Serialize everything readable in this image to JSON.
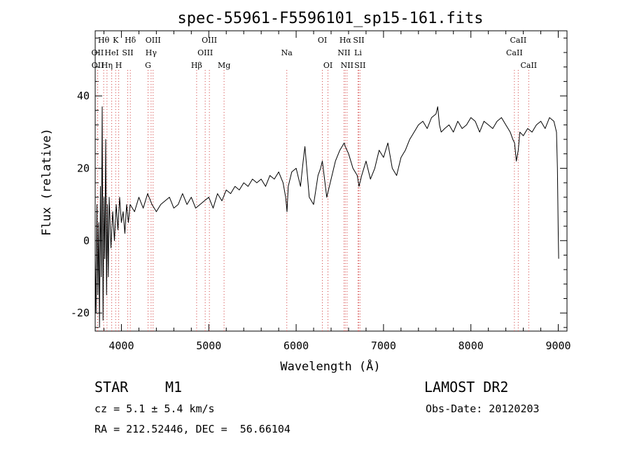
{
  "chart_data": {
    "type": "line",
    "title": "spec-55961-F5596101_sp15-161.fits",
    "xlabel": "Wavelength (Å)",
    "ylabel": "Flux (relative)",
    "xlim": [
      3700,
      9100
    ],
    "ylim": [
      -25,
      58
    ],
    "xticks": [
      4000,
      5000,
      6000,
      7000,
      8000,
      9000
    ],
    "yticks": [
      -20,
      0,
      20,
      40
    ],
    "grid": false,
    "series": [
      {
        "color": "#000000",
        "x": [
          3700,
          3710,
          3720,
          3730,
          3740,
          3750,
          3760,
          3770,
          3780,
          3790,
          3800,
          3810,
          3820,
          3830,
          3840,
          3850,
          3860,
          3880,
          3900,
          3920,
          3940,
          3960,
          3980,
          4000,
          4020,
          4040,
          4060,
          4080,
          4100,
          4150,
          4200,
          4250,
          4300,
          4350,
          4400,
          4450,
          4500,
          4550,
          4600,
          4650,
          4700,
          4750,
          4800,
          4850,
          4900,
          4950,
          5000,
          5050,
          5100,
          5150,
          5200,
          5250,
          5300,
          5350,
          5400,
          5450,
          5500,
          5550,
          5600,
          5650,
          5700,
          5750,
          5800,
          5850,
          5880,
          5895,
          5910,
          5950,
          6000,
          6050,
          6080,
          6100,
          6150,
          6200,
          6250,
          6280,
          6300,
          6350,
          6400,
          6450,
          6500,
          6550,
          6563,
          6600,
          6650,
          6700,
          6720,
          6750,
          6800,
          6850,
          6900,
          6950,
          7000,
          7050,
          7100,
          7150,
          7200,
          7250,
          7300,
          7350,
          7400,
          7450,
          7500,
          7550,
          7600,
          7620,
          7640,
          7660,
          7700,
          7750,
          7800,
          7850,
          7900,
          7950,
          8000,
          8050,
          8100,
          8150,
          8200,
          8250,
          8300,
          8350,
          8400,
          8450,
          8480,
          8500,
          8520,
          8542,
          8560,
          8600,
          8650,
          8700,
          8750,
          8800,
          8850,
          8900,
          8950,
          8980,
          8990,
          9000,
          9005
        ],
        "y": [
          -5,
          -20,
          10,
          -15,
          5,
          -24,
          15,
          -10,
          37,
          -22,
          12,
          -5,
          28,
          -15,
          10,
          -10,
          12,
          -2,
          8,
          0,
          10,
          3,
          12,
          5,
          8,
          2,
          10,
          5,
          10,
          8,
          12,
          9,
          13,
          10,
          8,
          10,
          11,
          12,
          9,
          10,
          13,
          10,
          12,
          9,
          10,
          11,
          12,
          9,
          13,
          11,
          14,
          13,
          15,
          14,
          16,
          15,
          17,
          16,
          17,
          15,
          18,
          17,
          19,
          16,
          12,
          8,
          15,
          19,
          20,
          15,
          22,
          26,
          12,
          10,
          18,
          20,
          22,
          12,
          17,
          22,
          25,
          27,
          26,
          24,
          20,
          18,
          15,
          18,
          22,
          17,
          20,
          25,
          23,
          27,
          20,
          18,
          23,
          25,
          28,
          30,
          32,
          33,
          31,
          34,
          35,
          37,
          32,
          30,
          31,
          32,
          30,
          33,
          31,
          32,
          34,
          33,
          30,
          33,
          32,
          31,
          33,
          34,
          32,
          30,
          28,
          27,
          22,
          25,
          30,
          29,
          31,
          30,
          32,
          33,
          31,
          34,
          33,
          30,
          20,
          2,
          -5
        ]
      }
    ],
    "lines": [
      {
        "label": "Hθ",
        "x": 3797,
        "row": 0
      },
      {
        "label": "OII",
        "x": 3727,
        "row": 1
      },
      {
        "label": "OII",
        "x": 3729,
        "row": 2
      },
      {
        "label": "K",
        "x": 3934,
        "row": 0
      },
      {
        "label": "HeI",
        "x": 3889,
        "row": 1
      },
      {
        "label": "Hη",
        "x": 3835,
        "row": 2
      },
      {
        "label": "SII",
        "x": 4072,
        "row": 1
      },
      {
        "label": "H",
        "x": 3969,
        "row": 2
      },
      {
        "label": "Hδ",
        "x": 4102,
        "row": 0
      },
      {
        "label": "OIII",
        "x": 4363,
        "row": 0
      },
      {
        "label": "Hγ",
        "x": 4340,
        "row": 1
      },
      {
        "label": "G",
        "x": 4305,
        "row": 2
      },
      {
        "label": "Hβ",
        "x": 4861,
        "row": 2
      },
      {
        "label": "OIII",
        "x": 5007,
        "row": 0
      },
      {
        "label": "OIII",
        "x": 4959,
        "row": 1
      },
      {
        "label": "Mg",
        "x": 5175,
        "row": 2
      },
      {
        "label": "Na",
        "x": 5893,
        "row": 1
      },
      {
        "label": "OI",
        "x": 6300,
        "row": 0
      },
      {
        "label": "OI",
        "x": 6364,
        "row": 2
      },
      {
        "label": "Hα",
        "x": 6563,
        "row": 0
      },
      {
        "label": "SII",
        "x": 6716,
        "row": 0
      },
      {
        "label": "NII",
        "x": 6548,
        "row": 1
      },
      {
        "label": "Li",
        "x": 6708,
        "row": 1
      },
      {
        "label": "NII",
        "x": 6583,
        "row": 2
      },
      {
        "label": "SII",
        "x": 6731,
        "row": 2
      },
      {
        "label": "CaII",
        "x": 8542,
        "row": 0
      },
      {
        "label": "CaII",
        "x": 8498,
        "row": 1
      },
      {
        "label": "CaII",
        "x": 8662,
        "row": 2
      }
    ]
  },
  "info": {
    "object_class": "STAR",
    "subclass": "M1",
    "survey": "LAMOST DR2",
    "cz": "cz = 5.1 ± 5.4 km/s",
    "obs_date": "Obs-Date: 20120203",
    "coords": "RA = 212.52446, DEC =  56.66104"
  }
}
